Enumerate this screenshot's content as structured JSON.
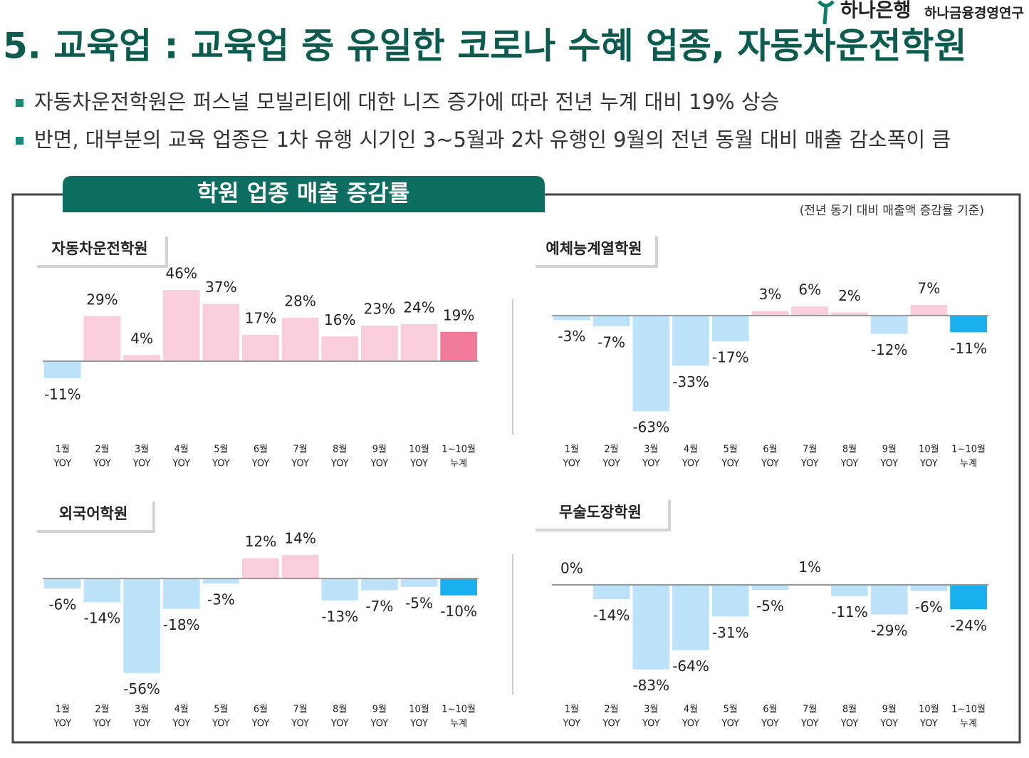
{
  "header": {
    "logo_bank": "하나은행",
    "logo_institute": "하나금융경영연구",
    "title": "5. 교육업 : 교육업 중 유일한 코로나 수혜 업종, 자동차운전학원",
    "bullets": [
      "자동차운전학원은 퍼스널 모빌리티에 대한 니즈 증가에 따라 전년 누계 대비 19% 상승",
      "반면, 대부분의 교육 업종은 1차 유행 시기인 3~5월과 2차 유행인 9월의 전년 동월 대비 매출 감소폭이 큼"
    ]
  },
  "section": {
    "title": "학원 업종 매출 증감률",
    "note": "(전년 동기 대비 매출액 증감률 기준)"
  },
  "chart_data": [
    {
      "type": "bar",
      "title": "자동차운전학원",
      "categories": [
        [
          "1월",
          "YOY"
        ],
        [
          "2월",
          "YOY"
        ],
        [
          "3월",
          "YOY"
        ],
        [
          "4월",
          "YOY"
        ],
        [
          "5월",
          "YOY"
        ],
        [
          "6월",
          "YOY"
        ],
        [
          "7월",
          "YOY"
        ],
        [
          "8월",
          "YOY"
        ],
        [
          "9월",
          "YOY"
        ],
        [
          "10월",
          "YOY"
        ],
        [
          "1~10월",
          "누계"
        ]
      ],
      "values": [
        -11,
        29,
        4,
        46,
        37,
        17,
        28,
        16,
        23,
        24,
        19
      ],
      "value_labels": [
        "-11%",
        "29%",
        "4%",
        "46%",
        "37%",
        "17%",
        "28%",
        "16%",
        "23%",
        "24%",
        "19%"
      ],
      "colors": [
        "#bde3fb",
        "#f9cdd9",
        "#f9cdd9",
        "#f9cdd9",
        "#f9cdd9",
        "#f9cdd9",
        "#f9cdd9",
        "#f9cdd9",
        "#f9cdd9",
        "#f9cdd9",
        "#f27a9a"
      ]
    },
    {
      "type": "bar",
      "title": "예체능계열학원",
      "categories": [
        [
          "1월",
          "YOY"
        ],
        [
          "2월",
          "YOY"
        ],
        [
          "3월",
          "YOY"
        ],
        [
          "4월",
          "YOY"
        ],
        [
          "5월",
          "YOY"
        ],
        [
          "6월",
          "YOY"
        ],
        [
          "7월",
          "YOY"
        ],
        [
          "8월",
          "YOY"
        ],
        [
          "9월",
          "YOY"
        ],
        [
          "10월",
          "YOY"
        ],
        [
          "1~10월",
          "누계"
        ]
      ],
      "values": [
        -3,
        -7,
        -63,
        -33,
        -17,
        3,
        6,
        2,
        -12,
        7,
        -11
      ],
      "value_labels": [
        "-3%",
        "-7%",
        "-63%",
        "-33%",
        "-17%",
        "3%",
        "6%",
        "2%",
        "-12%",
        "7%",
        "-11%"
      ],
      "colors": [
        "#bde3fb",
        "#bde3fb",
        "#bde3fb",
        "#bde3fb",
        "#bde3fb",
        "#f9cdd9",
        "#f9cdd9",
        "#f9cdd9",
        "#bde3fb",
        "#f9cdd9",
        "#1ab0ef"
      ]
    },
    {
      "type": "bar",
      "title": "외국어학원",
      "categories": [
        [
          "1월",
          "YOY"
        ],
        [
          "2월",
          "YOY"
        ],
        [
          "3월",
          "YOY"
        ],
        [
          "4월",
          "YOY"
        ],
        [
          "5월",
          "YOY"
        ],
        [
          "6월",
          "YOY"
        ],
        [
          "7월",
          "YOY"
        ],
        [
          "8월",
          "YOY"
        ],
        [
          "9월",
          "YOY"
        ],
        [
          "10월",
          "YOY"
        ],
        [
          "1~10월",
          "누계"
        ]
      ],
      "values": [
        -6,
        -14,
        -56,
        -18,
        -3,
        12,
        14,
        -13,
        -7,
        -5,
        -10
      ],
      "value_labels": [
        "-6%",
        "-14%",
        "-56%",
        "-18%",
        "-3%",
        "12%",
        "14%",
        "-13%",
        "-7%",
        "-5%",
        "-10%"
      ],
      "colors": [
        "#bde3fb",
        "#bde3fb",
        "#bde3fb",
        "#bde3fb",
        "#bde3fb",
        "#f9cdd9",
        "#f9cdd9",
        "#bde3fb",
        "#bde3fb",
        "#bde3fb",
        "#1ab0ef"
      ]
    },
    {
      "type": "bar",
      "title": "무술도장학원",
      "categories": [
        [
          "1월",
          "YOY"
        ],
        [
          "2월",
          "YOY"
        ],
        [
          "3월",
          "YOY"
        ],
        [
          "4월",
          "YOY"
        ],
        [
          "5월",
          "YOY"
        ],
        [
          "6월",
          "YOY"
        ],
        [
          "7월",
          "YOY"
        ],
        [
          "8월",
          "YOY"
        ],
        [
          "9월",
          "YOY"
        ],
        [
          "10월",
          "YOY"
        ],
        [
          "1~10월",
          "누계"
        ]
      ],
      "values": [
        0,
        -14,
        -83,
        -64,
        -31,
        -5,
        1,
        -11,
        -29,
        -6,
        -24
      ],
      "value_labels": [
        "0%",
        "-14%",
        "-83%",
        "-64%",
        "-31%",
        "-5%",
        "1%",
        "-11%",
        "-29%",
        "-6%",
        "-24%"
      ],
      "colors": [
        "#bde3fb",
        "#bde3fb",
        "#bde3fb",
        "#bde3fb",
        "#bde3fb",
        "#bde3fb",
        "#f9cdd9",
        "#bde3fb",
        "#bde3fb",
        "#bde3fb",
        "#1ab0ef"
      ]
    }
  ]
}
